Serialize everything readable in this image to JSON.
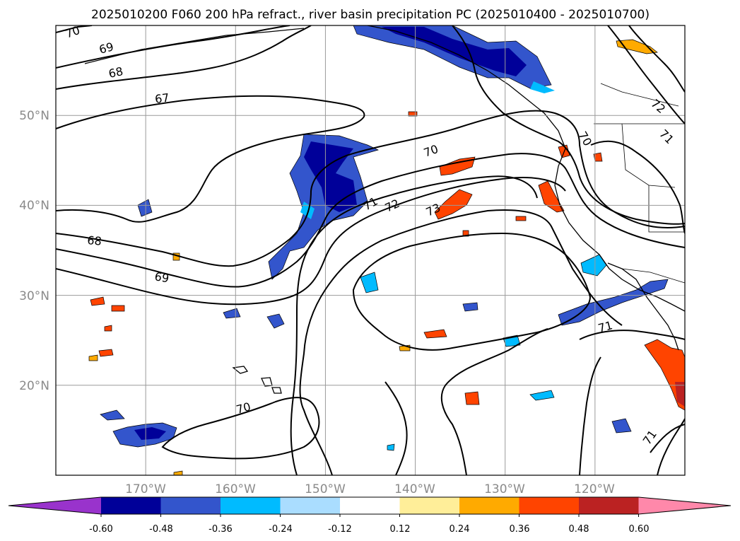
{
  "title": "2025010200 F060 200 hPa refract., river basin precipitation PC (2025010400 - 2025010700)",
  "map": {
    "lon_range": [
      -180,
      -110
    ],
    "lat_range": [
      10,
      60
    ],
    "lat_labels": [
      "20°N",
      "30°N",
      "40°N",
      "50°N"
    ],
    "lon_labels": [
      "170°W",
      "160°W",
      "150°W",
      "140°W",
      "130°W",
      "120°W"
    ],
    "gridlines": true,
    "contour_labels": [
      "70",
      "69",
      "68",
      "67",
      "70",
      "71",
      "72",
      "73",
      "68",
      "69",
      "70",
      "71",
      "72",
      "71",
      "70",
      "71",
      "71"
    ]
  },
  "colorbar": {
    "levels": [
      "-0.60",
      "-0.48",
      "-0.36",
      "-0.24",
      "-0.12",
      "0.12",
      "0.24",
      "0.36",
      "0.48",
      "0.60"
    ],
    "colors": [
      "#9933cc",
      "#000099",
      "#3355cc",
      "#00bbff",
      "#aaddff",
      "#ffffff",
      "#ffee99",
      "#ffaa00",
      "#ff4400",
      "#bb2222",
      "#ff88aa"
    ],
    "extend": "both"
  }
}
